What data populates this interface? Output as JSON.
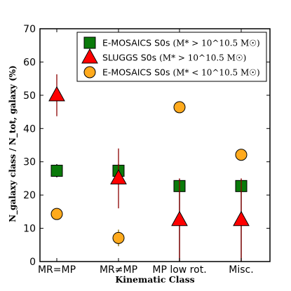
{
  "chart_data": {
    "type": "scatter",
    "title": "",
    "xlabel": "Kinematic Class",
    "ylabel": "N_galaxy class / N_tot, galaxy (%)",
    "ylim": [
      0,
      70
    ],
    "yticks": [
      0,
      10,
      20,
      30,
      40,
      50,
      60,
      70
    ],
    "categories": [
      "MR=MP",
      "MR≠MP",
      "MP low rot.",
      "Misc."
    ],
    "grid": false,
    "legend_position": "top-right",
    "series": [
      {
        "name": "E-MOSAICS S0s",
        "condition": "(M* > 10^10.5 M☉)",
        "marker": "square",
        "color": "#0a7a0a",
        "values": [
          27.3,
          27.3,
          22.7,
          22.7
        ],
        "err_low": [
          2.0,
          2.0,
          22.7,
          22.7
        ],
        "err_high": [
          2.0,
          2.0,
          2.0,
          2.0
        ]
      },
      {
        "name": "SLUGGS S0s",
        "condition": "(M* > 10^10.5 M☉)",
        "marker": "triangle",
        "color": "#ff0000",
        "values": [
          50.0,
          25.0,
          12.5,
          12.5
        ],
        "err_low": [
          6.3,
          9.0,
          12.5,
          12.5
        ],
        "err_high": [
          6.3,
          9.0,
          12.5,
          12.5
        ]
      },
      {
        "name": "E-MOSAICS S0s",
        "condition": "(M* < 10^10.5 M☉)",
        "marker": "circle",
        "color": "#ffaa1d",
        "values": [
          14.3,
          7.1,
          46.4,
          32.1
        ],
        "err_low": [
          0,
          2.5,
          0,
          0
        ],
        "err_high": [
          0,
          2.5,
          0,
          0
        ]
      }
    ]
  }
}
